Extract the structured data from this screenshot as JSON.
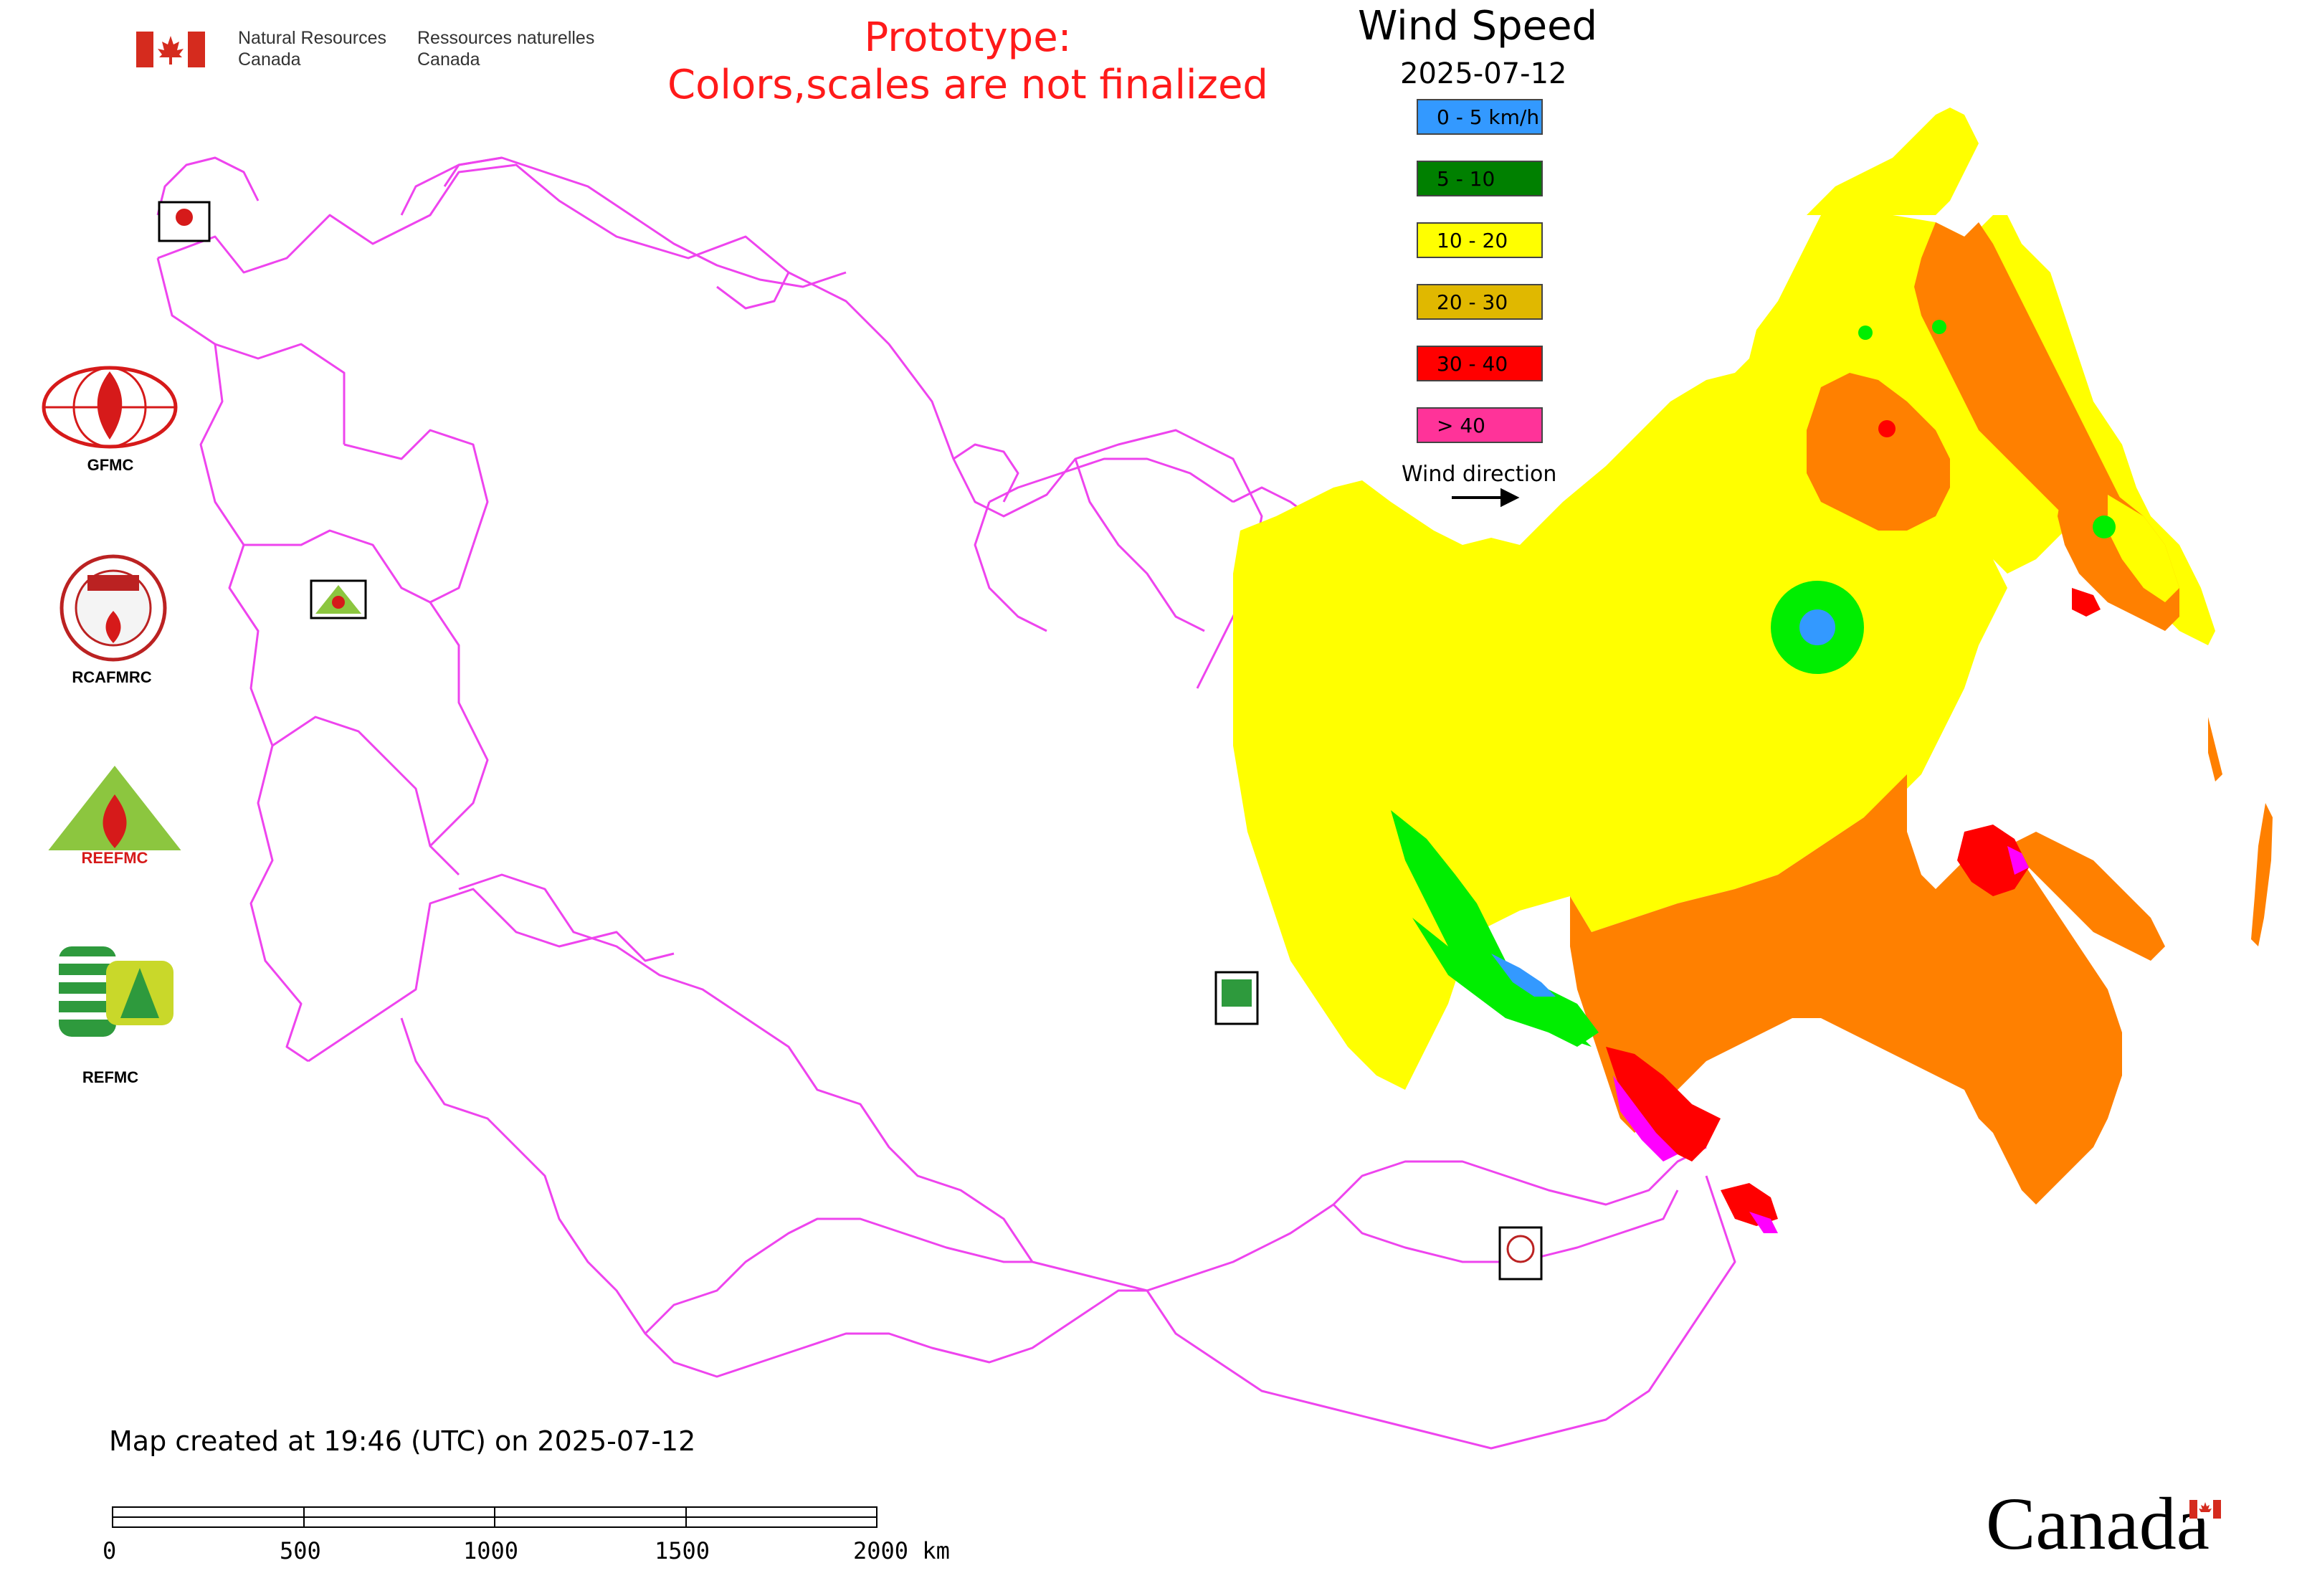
{
  "header": {
    "agency_en": [
      "Natural Resources",
      "Canada"
    ],
    "agency_fr": [
      "Ressources naturelles",
      "Canada"
    ],
    "flag_icon": "canada-flag-icon",
    "prototype_notice": [
      "Prototype:",
      "Colors,scales are not finalized"
    ]
  },
  "legend": {
    "title": "Wind Speed",
    "date": "2025-07-12",
    "items": [
      {
        "label": "0 - 5 km/h",
        "color": "#3399ff"
      },
      {
        "label": "5 - 10",
        "color": "#008000"
      },
      {
        "label": "10 - 20",
        "color": "#ffff00"
      },
      {
        "label": "20 - 30",
        "color": "#e0b800"
      },
      {
        "label": "30 - 40",
        "color": "#ff0000"
      },
      {
        "label": "> 40",
        "color": "#ff3399"
      }
    ],
    "wind_direction_label": "Wind direction"
  },
  "organizations": [
    {
      "label": "GFMC",
      "icon": "gfmc-logo-icon"
    },
    {
      "label": "RCAFMRC",
      "icon": "rcafmrc-logo-icon"
    },
    {
      "label": "REEFMC",
      "icon": "reefmc-logo-icon"
    },
    {
      "label": "REFMC",
      "icon": "refmc-logo-icon"
    }
  ],
  "map": {
    "boundary_color": "#ee44ee",
    "zone_colors": {
      "yellow": "#ffff00",
      "orange": "#ff8000",
      "green": "#00ee00",
      "blue": "#3399ff",
      "red": "#ff0000",
      "magenta": "#ff00ff"
    }
  },
  "footer": {
    "created": "Map created at 19:46 (UTC) on 2025-07-12",
    "scale_labels": [
      "0",
      "500",
      "1000",
      "1500",
      "2000 km"
    ],
    "wordmark": "Canada"
  }
}
